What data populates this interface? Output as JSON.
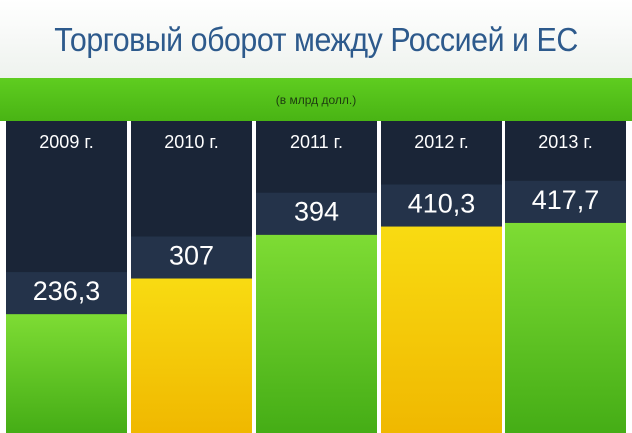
{
  "title": "Торговый оборот между Россией и ЕС",
  "subtitle": "(в млрд долл.)",
  "colors": {
    "green": "#6ad22c",
    "yellow": "#f7d20a",
    "column_background": "#1a2537",
    "header_band": "#57c41c",
    "title_text": "#2d5a8c"
  },
  "chart_data": {
    "type": "bar",
    "title": "Торговый оборот между Россией и ЕС",
    "subtitle": "(в млрд долл.)",
    "categories": [
      "2009 г.",
      "2010 г.",
      "2011 г.",
      "2012 г.",
      "2013 г."
    ],
    "values": [
      236.3,
      307,
      394,
      410.3,
      417.7
    ],
    "value_labels": [
      "236,3",
      "307",
      "394",
      "410,3",
      "417,7"
    ],
    "bar_colors": [
      "green",
      "yellow",
      "green",
      "yellow",
      "green"
    ],
    "ylim": [
      0,
      620
    ],
    "grid": false,
    "legend": "none"
  }
}
